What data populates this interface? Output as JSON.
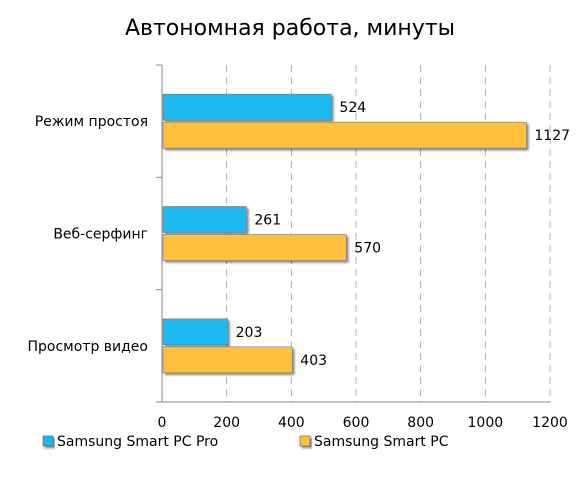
{
  "chart_data": {
    "type": "bar",
    "orientation": "horizontal",
    "title": "Автономная работа, минуты",
    "categories": [
      "Режим простоя",
      "Веб-серфинг",
      "Просмотр видео"
    ],
    "series": [
      {
        "name": "Samsung Smart PC Pro",
        "values": [
          524,
          261,
          203
        ],
        "color": "#1ab8f0"
      },
      {
        "name": "Samsung Smart PC",
        "values": [
          1127,
          570,
          403
        ],
        "color": "#ffc03a"
      }
    ],
    "xlim": [
      0,
      1200
    ],
    "xticks": [
      "0",
      "200",
      "400",
      "600",
      "800",
      "1000",
      "1200"
    ],
    "grid": "vertical dashed",
    "legend": "bottom"
  }
}
